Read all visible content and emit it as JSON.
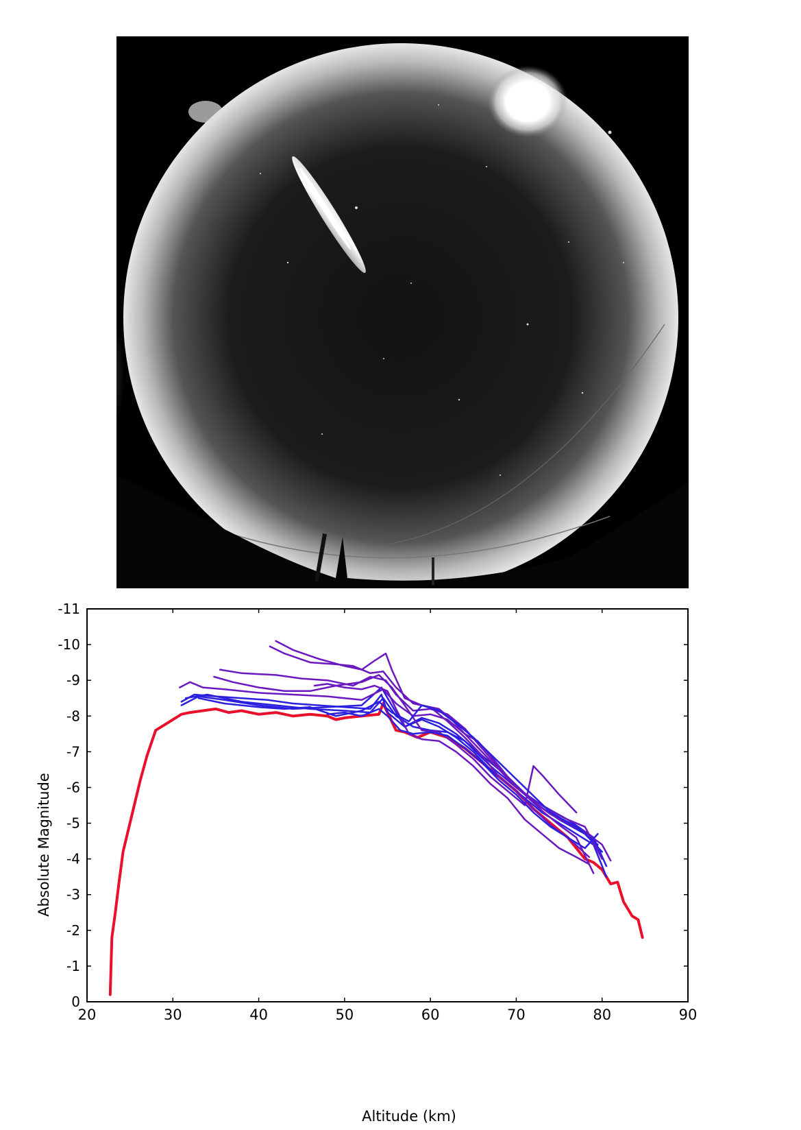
{
  "photo": {
    "subject": "all-sky camera image with a fireball streak"
  },
  "chart_data": {
    "type": "line",
    "xlabel": "Altitude (km)",
    "ylabel": "Absolute Magnitude",
    "xlim": [
      20,
      90
    ],
    "ylim": [
      0,
      -11
    ],
    "y_inverted": true,
    "grid": false,
    "x_ticks": [
      20,
      30,
      40,
      50,
      60,
      70,
      80,
      90
    ],
    "x_tick_labels": [
      "20",
      "30",
      "40",
      "50",
      "60",
      "70",
      "80",
      "90"
    ],
    "y_ticks": [
      0,
      -1,
      -2,
      -3,
      -4,
      -5,
      -6,
      -7,
      -8,
      -9,
      -10,
      -11
    ],
    "y_tick_labels": [
      "0",
      "-1",
      "-2",
      "-3",
      "-4",
      "-5",
      "-6",
      "-7",
      "-8",
      "-9",
      "-10",
      "-11"
    ],
    "colors": {
      "primary": "#e8102a",
      "model_a": "#2b1fe0",
      "model_b": "#6a18c0"
    },
    "series": [
      {
        "color": "#e8102a",
        "width": 4,
        "x": [
          22.7,
          22.9,
          23.3,
          23.7,
          24.2,
          24.8,
          25.5,
          26.2,
          27.0,
          28.0,
          29.0,
          30.0,
          31.0,
          32.0,
          33.5,
          35.0,
          36.5,
          38.0,
          40.0,
          42.0,
          44.0,
          46.0,
          48.0,
          49.0,
          50.0,
          52.0,
          54.0,
          54.5,
          55.0,
          56.0,
          57.0,
          58.5,
          60.0,
          62.0,
          64.0,
          66.0,
          68.0,
          70.0,
          72.0,
          74.0,
          76.0,
          78.0,
          79.0,
          80.0,
          81.0,
          81.8,
          82.5,
          83.5,
          84.2,
          84.7
        ],
        "y": [
          -0.2,
          -1.8,
          -2.5,
          -3.3,
          -4.2,
          -4.8,
          -5.5,
          -6.2,
          -6.9,
          -7.6,
          -7.75,
          -7.9,
          -8.05,
          -8.1,
          -8.15,
          -8.2,
          -8.1,
          -8.15,
          -8.05,
          -8.1,
          -8.0,
          -8.05,
          -8.0,
          -7.9,
          -7.95,
          -8.0,
          -8.05,
          -8.35,
          -8.1,
          -7.6,
          -7.55,
          -7.4,
          -7.55,
          -7.4,
          -7.1,
          -6.7,
          -6.3,
          -5.9,
          -5.4,
          -5.0,
          -4.6,
          -4.0,
          -3.9,
          -3.7,
          -3.3,
          -3.35,
          -2.8,
          -2.4,
          -2.3,
          -1.8
        ]
      },
      {
        "color": "#2b1fe0",
        "width": 2.5,
        "x": [
          31.0,
          32.5,
          35.0,
          38.0,
          41.0,
          44.0,
          47.0,
          50.0,
          53.0,
          54.3,
          55.0,
          57.0,
          59.0,
          61.0,
          63.0,
          65.0,
          67.0,
          69.0,
          71.0,
          73.0,
          75.0,
          77.0,
          79.0,
          80.5
        ],
        "y": [
          -8.4,
          -8.6,
          -8.55,
          -8.5,
          -8.45,
          -8.35,
          -8.3,
          -8.25,
          -8.2,
          -8.6,
          -8.1,
          -7.7,
          -7.9,
          -7.7,
          -7.4,
          -7.0,
          -6.5,
          -6.1,
          -5.7,
          -5.3,
          -5.0,
          -4.7,
          -4.4,
          -3.5
        ]
      },
      {
        "color": "#2b1fe0",
        "width": 2.5,
        "x": [
          31.0,
          33.0,
          36.0,
          40.0,
          44.0,
          48.0,
          52.0,
          54.3,
          55.5,
          57.0,
          59.0,
          61.0,
          63.0,
          66.0,
          69.0,
          72.0,
          75.0,
          78.0,
          80.0
        ],
        "y": [
          -8.3,
          -8.55,
          -8.45,
          -8.3,
          -8.2,
          -8.25,
          -8.3,
          -8.8,
          -8.3,
          -7.7,
          -7.95,
          -7.8,
          -7.5,
          -6.9,
          -6.3,
          -5.6,
          -5.1,
          -4.7,
          -4.2
        ]
      },
      {
        "color": "#2b1fe0",
        "width": 2.5,
        "x": [
          31.5,
          34.0,
          38.0,
          42.0,
          46.0,
          50.0,
          53.0,
          54.5,
          56.0,
          58.0,
          60.0,
          62.0,
          64.0,
          67.0,
          70.0,
          73.0,
          76.0,
          79.0,
          80.5
        ],
        "y": [
          -8.5,
          -8.6,
          -8.4,
          -8.3,
          -8.2,
          -8.15,
          -8.1,
          -8.5,
          -8.0,
          -7.7,
          -7.6,
          -7.55,
          -7.3,
          -6.6,
          -6.0,
          -5.5,
          -5.1,
          -4.6,
          -3.8
        ]
      },
      {
        "color": "#6a18c0",
        "width": 2.5,
        "x": [
          30.8,
          32.0,
          33.5,
          36.0,
          40.0,
          44.0,
          48.0,
          52.0,
          54.5,
          56.0,
          58.0,
          60.0,
          62.0,
          64.0,
          66.0,
          68.0,
          70.0,
          72.0,
          74.0,
          76.0,
          78.0,
          80.0,
          81.0
        ],
        "y": [
          -8.8,
          -8.95,
          -8.8,
          -8.75,
          -8.65,
          -8.6,
          -8.55,
          -8.45,
          -8.75,
          -8.35,
          -8.0,
          -8.05,
          -7.9,
          -7.5,
          -7.0,
          -6.5,
          -6.0,
          -5.6,
          -5.25,
          -5.0,
          -4.75,
          -4.4,
          -3.95
        ]
      },
      {
        "color": "#6a18c0",
        "width": 2.5,
        "x": [
          35.5,
          38.0,
          42.0,
          45.0,
          48.0,
          51.0,
          53.0,
          54.8,
          56.0,
          58.0,
          60.0,
          62.0,
          64.0,
          66.0,
          68.0,
          70.0,
          72.0,
          74.0,
          76.0,
          78.0,
          80.0
        ],
        "y": [
          -9.3,
          -9.2,
          -9.15,
          -9.05,
          -9.0,
          -8.85,
          -9.1,
          -9.0,
          -8.6,
          -8.15,
          -8.2,
          -8.05,
          -7.65,
          -7.1,
          -6.55,
          -6.0,
          -5.65,
          -5.35,
          -5.1,
          -4.9,
          -4.0
        ]
      },
      {
        "color": "#6a18c0",
        "width": 2.5,
        "x": [
          42.0,
          44.0,
          47.0,
          50.0,
          52.0,
          53.5,
          54.8,
          55.5,
          57.0,
          59.0,
          61.0,
          62.5,
          64.0,
          65.5,
          67.0,
          69.0,
          71.0,
          73.0,
          75.0,
          77.0,
          79.0
        ],
        "y": [
          -10.1,
          -9.85,
          -9.6,
          -9.4,
          -9.3,
          -9.55,
          -9.75,
          -9.3,
          -8.5,
          -8.3,
          -8.2,
          -7.9,
          -7.5,
          -7.3,
          -6.9,
          -6.3,
          -5.8,
          -5.35,
          -4.95,
          -4.6,
          -3.6
        ]
      },
      {
        "color": "#6a18c0",
        "width": 2.5,
        "x": [
          41.3,
          43.0,
          46.0,
          49.0,
          51.0,
          53.0,
          54.5,
          56.0,
          58.0,
          60.0,
          62.0,
          64.0,
          66.0,
          68.0,
          70.0,
          72.0,
          74.0,
          76.0,
          78.5
        ],
        "y": [
          -9.95,
          -9.75,
          -9.5,
          -9.45,
          -9.4,
          -9.2,
          -9.25,
          -8.8,
          -8.35,
          -8.25,
          -7.85,
          -7.4,
          -6.9,
          -6.3,
          -5.9,
          -5.4,
          -4.95,
          -4.6,
          -4.05
        ]
      },
      {
        "color": "#6a18c0",
        "width": 2.5,
        "x": [
          34.8,
          37.0,
          40.0,
          43.0,
          46.0,
          49.0,
          52.0,
          54.0,
          55.5,
          57.0,
          59.0,
          61.0,
          63.0,
          65.0,
          67.0,
          69.0,
          71.0,
          72.0,
          73.0,
          75.0,
          77.0
        ],
        "y": [
          -9.1,
          -8.95,
          -8.8,
          -8.7,
          -8.7,
          -8.85,
          -8.95,
          -9.15,
          -8.8,
          -8.3,
          -7.6,
          -7.55,
          -7.2,
          -6.8,
          -6.3,
          -5.9,
          -5.5,
          -6.6,
          -6.35,
          -5.8,
          -5.3
        ]
      },
      {
        "color": "#6a18c0",
        "width": 2.5,
        "x": [
          46.5,
          48.0,
          50.0,
          52.0,
          53.5,
          55.0,
          56.0,
          57.5,
          59.0,
          61.0,
          63.0,
          65.0,
          67.0,
          69.0,
          71.0,
          73.0,
          75.0,
          77.0,
          78.5
        ],
        "y": [
          -8.85,
          -8.9,
          -8.8,
          -8.75,
          -8.85,
          -8.7,
          -8.2,
          -7.5,
          -7.35,
          -7.3,
          -7.0,
          -6.6,
          -6.1,
          -5.7,
          -5.1,
          -4.7,
          -4.3,
          -4.05,
          -3.85
        ]
      },
      {
        "color": "#2b1fe0",
        "width": 2.5,
        "x": [
          33.0,
          36.0,
          40.0,
          43.0,
          46.0,
          49.0,
          52.0,
          54.0,
          55.5,
          57.5,
          59.0,
          61.0,
          63.0,
          65.0,
          68.0,
          71.0,
          74.0,
          77.0,
          79.5
        ],
        "y": [
          -8.5,
          -8.35,
          -8.25,
          -8.2,
          -8.25,
          -8.0,
          -8.15,
          -8.4,
          -8.1,
          -7.85,
          -8.3,
          -8.15,
          -7.8,
          -7.4,
          -6.7,
          -6.0,
          -5.3,
          -4.9,
          -4.4
        ]
      },
      {
        "color": "#2b1fe0",
        "width": 2.5,
        "x": [
          48.0,
          50.0,
          52.0,
          54.0,
          55.0,
          56.5,
          58.0,
          60.0,
          62.0,
          64.0,
          66.0,
          68.0,
          70.0,
          72.0,
          74.0,
          76.0,
          78.0,
          79.5
        ],
        "y": [
          -8.05,
          -8.1,
          -8.0,
          -8.2,
          -8.0,
          -7.6,
          -7.5,
          -7.55,
          -7.45,
          -7.1,
          -6.7,
          -6.2,
          -5.8,
          -5.3,
          -4.9,
          -4.6,
          -4.3,
          -4.7
        ]
      }
    ]
  }
}
